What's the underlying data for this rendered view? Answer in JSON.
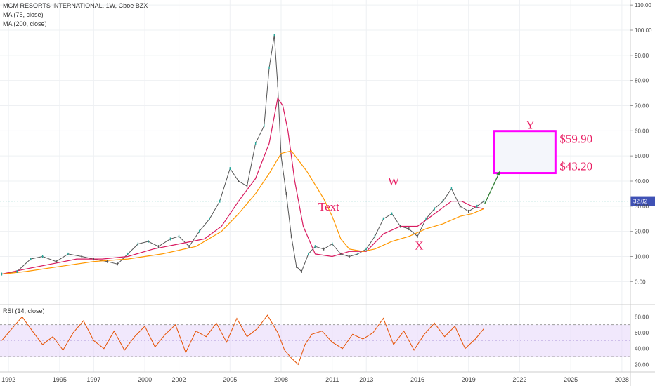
{
  "header": {
    "title": "MGM RESORTS INTERNATIONAL, 1W, Cboe BZX",
    "ma75": "MA (75, close)",
    "ma200": "MA (200, close)"
  },
  "rsi_panel": {
    "label": "RSI (14, close)",
    "upper": 70,
    "lower": 30
  },
  "colors": {
    "price_up": "#26a69a",
    "price_down": "#555555",
    "ma75": "#d81b60",
    "ma200": "#ff9800",
    "rsi_line": "#e65100",
    "rsi_band": "#e6d5fa",
    "annotation": "#e91e63",
    "arrow": "#2e7d32",
    "last_price_badge": "#3f51b5",
    "last_price_line": "#26a69a"
  },
  "annotations": {
    "w": "W",
    "x": "X",
    "y": "Y",
    "text": "Text",
    "target_high": "$59.90",
    "target_low": "$43.20"
  },
  "chart_data": [
    {
      "type": "line",
      "title": "MGM RESORTS INTERNATIONAL, 1W, Cboe BZX",
      "x_ticks": [
        "1992",
        "1995",
        "1997",
        "2000",
        "2002",
        "2005",
        "2008",
        "2011",
        "2013",
        "2016",
        "2019",
        "2022",
        "2025",
        "2028"
      ],
      "y_ticks": [
        "0.00",
        "10.00",
        "20.00",
        "30.00",
        "40.00",
        "50.00",
        "60.00",
        "70.00",
        "80.00",
        "90.00",
        "100.00",
        "110.00"
      ],
      "xlim": [
        1991.5,
        2028.5
      ],
      "ylim": [
        -8,
        112
      ],
      "last_price": 32.02,
      "last_price_label": "32.02",
      "series": [
        {
          "name": "",
          "x": [
            1991.6,
            1992.5,
            1993.3,
            1994.0,
            1994.8,
            1995.5,
            1996.3,
            1997.0,
            1997.8,
            1998.4,
            1999.0,
            1999.6,
            2000.2,
            2000.8,
            2001.5,
            2002.0,
            2002.6,
            2003.2,
            2003.8,
            2004.4,
            2005.0,
            2005.5,
            2006.0,
            2006.5,
            2007.0,
            2007.3,
            2007.6,
            2007.8,
            2008.0,
            2008.3,
            2008.6,
            2008.9,
            2009.2,
            2009.6,
            2010.0,
            2010.5,
            2011.0,
            2011.5,
            2012.0,
            2012.5,
            2013.0,
            2013.5,
            2014.0,
            2014.5,
            2015.0,
            2015.5,
            2016.0,
            2016.5,
            2017.0,
            2017.5,
            2018.0,
            2018.5,
            2019.0,
            2019.5,
            2019.9
          ],
          "values": [
            3,
            4,
            9,
            10,
            8,
            11,
            10,
            9,
            8,
            7,
            11,
            15,
            16,
            14,
            17,
            18,
            14,
            20,
            25,
            32,
            45,
            40,
            38,
            55,
            62,
            85,
            98,
            78,
            50,
            35,
            18,
            6,
            4,
            11,
            14,
            13,
            15,
            11,
            10,
            11,
            13,
            18,
            25,
            27,
            22,
            21,
            18,
            25,
            29,
            32,
            37,
            30,
            28,
            30,
            32
          ]
        },
        {
          "name": "MA (75, close)",
          "x": [
            1991.6,
            1993.0,
            1994.5,
            1996.0,
            1997.5,
            1999.0,
            2000.5,
            2002.0,
            2003.5,
            2004.5,
            2005.5,
            2006.5,
            2007.3,
            2007.8,
            2008.1,
            2008.4,
            2008.8,
            2009.3,
            2010.0,
            2011.0,
            2012.0,
            2013.0,
            2014.0,
            2015.0,
            2016.0,
            2017.0,
            2018.0,
            2018.6,
            2019.2,
            2019.9
          ],
          "values": [
            3,
            5,
            7,
            9,
            9,
            10,
            13,
            15,
            17,
            22,
            32,
            41,
            55,
            73,
            70,
            60,
            40,
            22,
            11,
            10,
            12,
            12,
            19,
            22,
            22,
            27,
            32,
            32,
            30,
            29
          ]
        },
        {
          "name": "MA (200, close)",
          "x": [
            1991.6,
            1993.0,
            1995.0,
            1997.0,
            1999.0,
            2001.0,
            2003.0,
            2004.5,
            2005.5,
            2006.5,
            2007.3,
            2008.0,
            2008.6,
            2009.5,
            2010.5,
            2011.0,
            2011.5,
            2012.0,
            2012.8,
            2013.5,
            2014.5,
            2015.5,
            2016.5,
            2017.5,
            2018.5,
            2019.2,
            2019.9
          ],
          "values": [
            3,
            4,
            6,
            8,
            9,
            11,
            14,
            20,
            27,
            35,
            43,
            51,
            52,
            44,
            33,
            26,
            17,
            13,
            12,
            13,
            16,
            18,
            21,
            23,
            26,
            27,
            29
          ]
        }
      ]
    },
    {
      "type": "line",
      "title": "RSI (14, close)",
      "y_ticks": [
        "20.00",
        "40.00",
        "60.00",
        "80.00"
      ],
      "ylim": [
        15,
        90
      ],
      "band": [
        30,
        70
      ],
      "series": [
        {
          "name": "",
          "x": [
            1991.6,
            1992.2,
            1992.8,
            1993.4,
            1994.0,
            1994.6,
            1995.2,
            1995.8,
            1996.4,
            1997.0,
            1997.6,
            1998.2,
            1998.8,
            1999.4,
            2000.0,
            2000.6,
            2001.2,
            2001.8,
            2002.4,
            2003.0,
            2003.6,
            2004.2,
            2004.8,
            2005.4,
            2006.0,
            2006.6,
            2007.2,
            2007.8,
            2008.2,
            2008.6,
            2009.0,
            2009.4,
            2009.8,
            2010.4,
            2011.0,
            2011.6,
            2012.2,
            2012.8,
            2013.4,
            2014.0,
            2014.6,
            2015.2,
            2015.8,
            2016.4,
            2017.0,
            2017.6,
            2018.2,
            2018.8,
            2019.4,
            2019.9
          ],
          "values": [
            50,
            65,
            80,
            62,
            45,
            55,
            38,
            60,
            75,
            50,
            40,
            62,
            38,
            55,
            68,
            42,
            58,
            70,
            35,
            62,
            55,
            72,
            48,
            78,
            55,
            65,
            82,
            60,
            38,
            28,
            20,
            45,
            58,
            62,
            48,
            40,
            58,
            52,
            60,
            78,
            45,
            62,
            38,
            58,
            72,
            55,
            68,
            40,
            52,
            65
          ]
        }
      ]
    }
  ]
}
